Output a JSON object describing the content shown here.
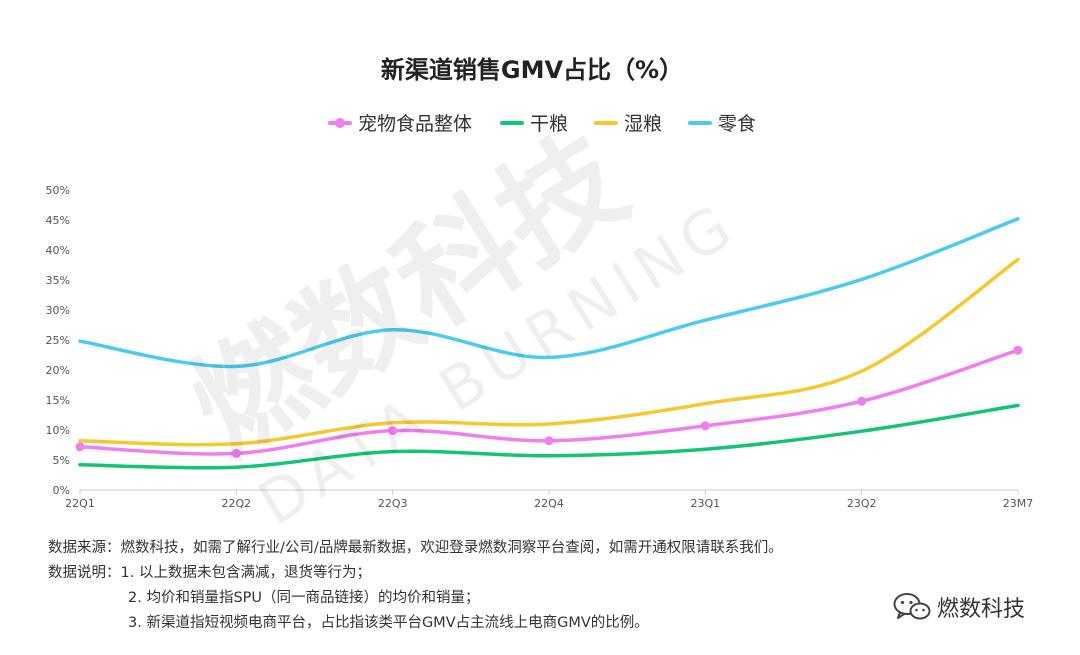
{
  "colors": {
    "whole": "#f07ef0",
    "dry": "#13c474",
    "wet": "#f7c82c",
    "snack": "#4ccbf1",
    "axis": "#cccccc",
    "text": "#333333"
  },
  "chart_data": {
    "type": "line",
    "title": "新渠道销售GMV占比（%）",
    "categories": [
      "22Q1",
      "22Q2",
      "22Q3",
      "22Q4",
      "23Q1",
      "23Q2",
      "23M7"
    ],
    "ylim": [
      0,
      50
    ],
    "yticks": [
      "0%",
      "5%",
      "10%",
      "15%",
      "20%",
      "25%",
      "30%",
      "35%",
      "40%",
      "45%",
      "50%"
    ],
    "grid": false,
    "legend_position": "top-center",
    "series": [
      {
        "name": "宠物食品整体",
        "key": "whole",
        "markers": true,
        "values": [
          7.2,
          6.1,
          9.9,
          8.2,
          10.7,
          14.8,
          23.3
        ]
      },
      {
        "name": "干粮",
        "key": "dry",
        "markers": false,
        "values": [
          4.2,
          3.8,
          6.4,
          5.7,
          6.8,
          9.8,
          14.1
        ]
      },
      {
        "name": "湿粮",
        "key": "wet",
        "markers": false,
        "values": [
          8.2,
          7.7,
          11.2,
          11.0,
          14.4,
          19.8,
          38.4
        ]
      },
      {
        "name": "零食",
        "key": "snack",
        "markers": false,
        "values": [
          24.8,
          20.6,
          26.7,
          22.1,
          28.3,
          35.1,
          45.2
        ]
      }
    ]
  },
  "notes": {
    "source": "数据来源：燃数科技，如需了解行业/公司/品牌最新数据，欢迎登录燃数洞察平台查阅，如需开通权限请联系我们。",
    "desc_label": "数据说明：",
    "desc_1": "1. 以上数据未包含满减，退货等行为；",
    "desc_2": "2. 均价和销量指SPU（同一商品链接）的均价和销量；",
    "desc_3": "3. 新渠道指短视频电商平台，占比指该类平台GMV占主流线上电商GMV的比例。"
  },
  "brand": {
    "name": "燃数科技",
    "icon": "wechat-icon"
  },
  "watermark": {
    "cn": "燃数科技",
    "en": "DATA BURNING"
  }
}
